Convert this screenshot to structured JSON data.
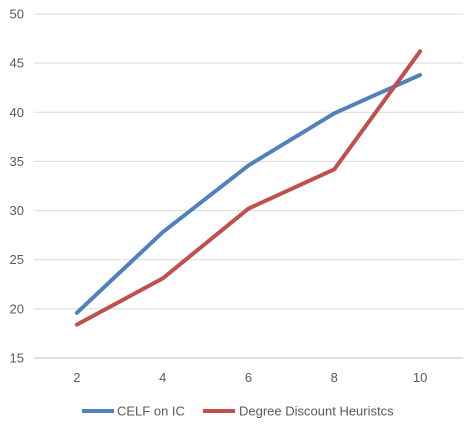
{
  "chart_data": {
    "type": "line",
    "title": "",
    "xlabel": "",
    "ylabel": "",
    "x": [
      2,
      4,
      6,
      8,
      10
    ],
    "ylim": [
      15,
      50
    ],
    "y_ticks": [
      15,
      20,
      25,
      30,
      35,
      40,
      45,
      50
    ],
    "grid": true,
    "legend_position": "bottom",
    "series": [
      {
        "name": "CELF on IC",
        "color": "#4f81bd",
        "values": [
          19.6,
          27.8,
          34.6,
          39.9,
          43.8
        ]
      },
      {
        "name": "Degree Discount Heuristcs",
        "color": "#c0504d",
        "values": [
          18.4,
          23.1,
          30.2,
          34.2,
          46.2
        ]
      }
    ]
  }
}
